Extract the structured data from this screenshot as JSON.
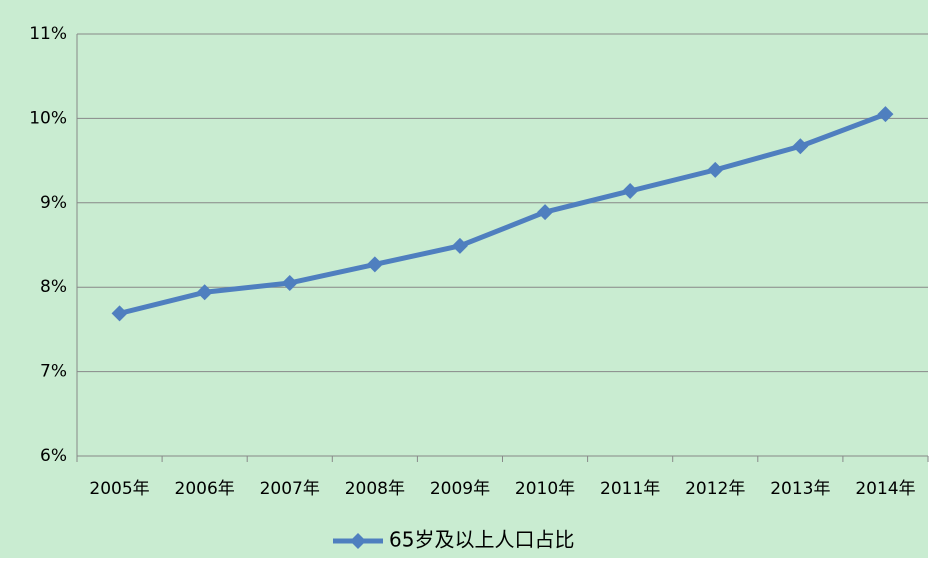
{
  "chart_data": {
    "type": "line",
    "categories": [
      "2005年",
      "2006年",
      "2007年",
      "2008年",
      "2009年",
      "2010年",
      "2011年",
      "2012年",
      "2013年",
      "2014年"
    ],
    "series": [
      {
        "name": "65岁及以上人口占比",
        "color": "#4f7fbf",
        "values": [
          7.69,
          7.94,
          8.05,
          8.27,
          8.49,
          8.89,
          9.14,
          9.39,
          9.67,
          10.05
        ]
      }
    ],
    "ylim": [
      6,
      11
    ],
    "yticks": [
      {
        "value": 6,
        "label": "6%"
      },
      {
        "value": 7,
        "label": "7%"
      },
      {
        "value": 8,
        "label": "8%"
      },
      {
        "value": 9,
        "label": "9%"
      },
      {
        "value": 10,
        "label": "10%"
      },
      {
        "value": 11,
        "label": "11%"
      }
    ],
    "grid": true,
    "legend": "bottom"
  }
}
